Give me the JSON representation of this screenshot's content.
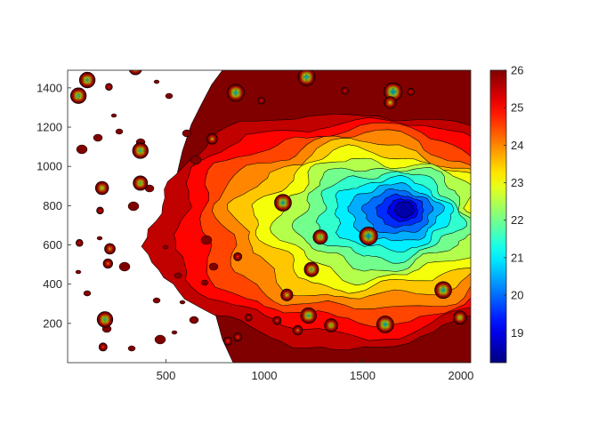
{
  "chart_data": {
    "type": "heatmap",
    "subtype": "filled-contour",
    "colormap": "jet",
    "title": "",
    "xlabel": "",
    "ylabel": "",
    "xlim": [
      0,
      2050
    ],
    "ylim": [
      0,
      1490
    ],
    "x_ticks": [
      500,
      1000,
      1500,
      2000
    ],
    "x_tick_labels": [
      "500",
      "1000",
      "1500",
      "2000"
    ],
    "y_ticks": [
      200,
      400,
      600,
      800,
      1000,
      1200,
      1400
    ],
    "y_tick_labels": [
      "200",
      "400",
      "600",
      "800",
      "1000",
      "1200",
      "1400"
    ],
    "colorbar": {
      "range": [
        18.2,
        26
      ],
      "ticks": [
        19,
        20,
        21,
        22,
        23,
        24,
        25,
        26
      ],
      "tick_labels": [
        "19",
        "20",
        "21",
        "22",
        "23",
        "24",
        "25",
        "26"
      ]
    },
    "contour_levels": [
      26,
      25.5,
      25,
      24.5,
      24,
      23.5,
      23,
      22.5,
      22,
      21.5,
      21,
      20.5,
      20,
      19.5,
      19,
      18.5
    ],
    "galaxy": {
      "center": [
        1710,
        780
      ],
      "min_value": 18.5,
      "outer_value": 26
    },
    "point_sources": [
      {
        "x": 100,
        "y": 1440,
        "v": 21.5
      },
      {
        "x": 55,
        "y": 1360,
        "v": 21.5
      },
      {
        "x": 345,
        "y": 1500,
        "v": 22.5
      },
      {
        "x": 210,
        "y": 1405,
        "v": 25
      },
      {
        "x": 370,
        "y": 1080,
        "v": 21.5
      },
      {
        "x": 370,
        "y": 915,
        "v": 22
      },
      {
        "x": 175,
        "y": 890,
        "v": 22.5
      },
      {
        "x": 165,
        "y": 775,
        "v": 25
      },
      {
        "x": 215,
        "y": 580,
        "v": 23.5
      },
      {
        "x": 205,
        "y": 505,
        "v": 24
      },
      {
        "x": 190,
        "y": 220,
        "v": 21.5
      },
      {
        "x": 180,
        "y": 80,
        "v": 24.5
      },
      {
        "x": 60,
        "y": 610,
        "v": 25
      },
      {
        "x": 855,
        "y": 1375,
        "v": 21
      },
      {
        "x": 1215,
        "y": 1455,
        "v": 21
      },
      {
        "x": 1655,
        "y": 1380,
        "v": 20.5
      },
      {
        "x": 1640,
        "y": 1325,
        "v": 23
      },
      {
        "x": 735,
        "y": 1140,
        "v": 23.5
      },
      {
        "x": 1095,
        "y": 815,
        "v": 21
      },
      {
        "x": 1285,
        "y": 640,
        "v": 22
      },
      {
        "x": 1530,
        "y": 645,
        "v": 20.5
      },
      {
        "x": 1240,
        "y": 475,
        "v": 22
      },
      {
        "x": 865,
        "y": 540,
        "v": 24.5
      },
      {
        "x": 1115,
        "y": 345,
        "v": 23
      },
      {
        "x": 1225,
        "y": 240,
        "v": 21.5
      },
      {
        "x": 1340,
        "y": 190,
        "v": 22.5
      },
      {
        "x": 1170,
        "y": 165,
        "v": 24
      },
      {
        "x": 1615,
        "y": 195,
        "v": 21
      },
      {
        "x": 1910,
        "y": 370,
        "v": 21
      },
      {
        "x": 1995,
        "y": 230,
        "v": 22.5
      },
      {
        "x": 985,
        "y": 1335,
        "v": 25
      },
      {
        "x": 815,
        "y": 110,
        "v": 24.5
      },
      {
        "x": 865,
        "y": 130,
        "v": 24.5
      },
      {
        "x": 920,
        "y": 230,
        "v": 25
      },
      {
        "x": 1065,
        "y": 215,
        "v": 24.5
      },
      {
        "x": 1410,
        "y": 1385,
        "v": 25
      },
      {
        "x": 1745,
        "y": 1380,
        "v": 25
      }
    ]
  }
}
